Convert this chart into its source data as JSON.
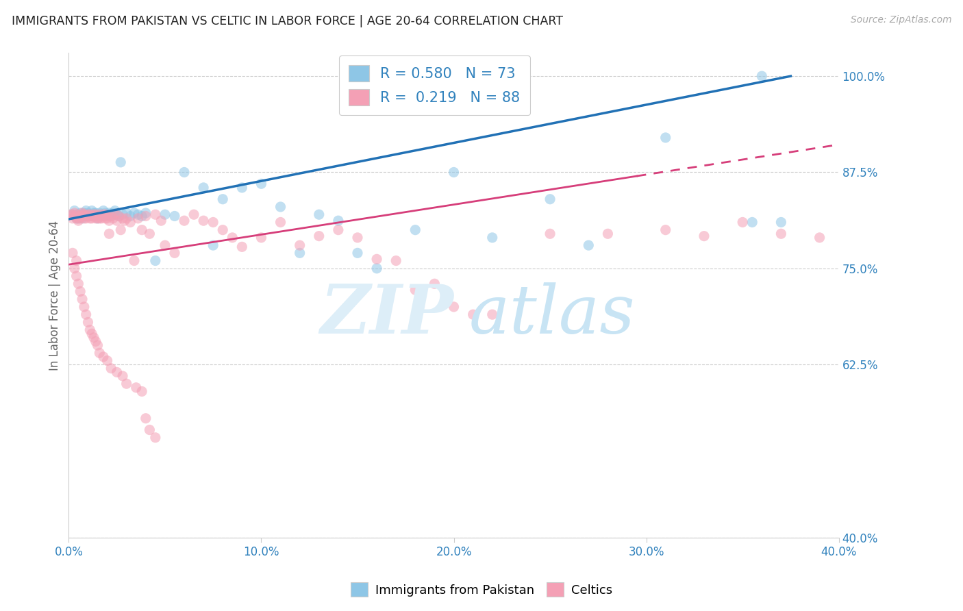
{
  "title": "IMMIGRANTS FROM PAKISTAN VS CELTIC IN LABOR FORCE | AGE 20-64 CORRELATION CHART",
  "source": "Source: ZipAtlas.com",
  "ylabel": "In Labor Force | Age 20-64",
  "xlim": [
    0.0,
    0.4
  ],
  "ylim": [
    0.4,
    1.03
  ],
  "xtick_labels": [
    "0.0%",
    "10.0%",
    "20.0%",
    "30.0%",
    "40.0%"
  ],
  "xtick_vals": [
    0.0,
    0.1,
    0.2,
    0.3,
    0.4
  ],
  "ytick_labels": [
    "100.0%",
    "87.5%",
    "75.0%",
    "62.5%",
    "40.0%"
  ],
  "ytick_vals": [
    1.0,
    0.875,
    0.75,
    0.625,
    0.4
  ],
  "color_blue": "#8ec6e6",
  "color_pink": "#f4a0b5",
  "color_blue_line": "#2171b5",
  "color_pink_line": "#d63e7a",
  "color_blue_text": "#3182bd",
  "blue_scatter_x": [
    0.002,
    0.003,
    0.004,
    0.005,
    0.005,
    0.006,
    0.006,
    0.007,
    0.007,
    0.008,
    0.008,
    0.009,
    0.009,
    0.01,
    0.01,
    0.011,
    0.011,
    0.012,
    0.012,
    0.013,
    0.013,
    0.014,
    0.014,
    0.015,
    0.015,
    0.016,
    0.016,
    0.017,
    0.017,
    0.018,
    0.018,
    0.019,
    0.02,
    0.02,
    0.021,
    0.022,
    0.022,
    0.023,
    0.024,
    0.025,
    0.026,
    0.027,
    0.028,
    0.03,
    0.032,
    0.034,
    0.036,
    0.038,
    0.04,
    0.045,
    0.05,
    0.055,
    0.06,
    0.07,
    0.075,
    0.08,
    0.09,
    0.1,
    0.11,
    0.12,
    0.13,
    0.14,
    0.15,
    0.16,
    0.18,
    0.2,
    0.22,
    0.25,
    0.27,
    0.31,
    0.355,
    0.36,
    0.37
  ],
  "blue_scatter_y": [
    0.82,
    0.825,
    0.815,
    0.82,
    0.815,
    0.818,
    0.822,
    0.82,
    0.815,
    0.822,
    0.818,
    0.825,
    0.82,
    0.822,
    0.818,
    0.82,
    0.818,
    0.825,
    0.818,
    0.822,
    0.82,
    0.818,
    0.822,
    0.82,
    0.815,
    0.822,
    0.818,
    0.82,
    0.818,
    0.825,
    0.818,
    0.822,
    0.82,
    0.818,
    0.822,
    0.82,
    0.818,
    0.822,
    0.825,
    0.82,
    0.818,
    0.888,
    0.82,
    0.822,
    0.818,
    0.822,
    0.82,
    0.818,
    0.822,
    0.76,
    0.82,
    0.818,
    0.875,
    0.855,
    0.78,
    0.84,
    0.855,
    0.86,
    0.83,
    0.77,
    0.82,
    0.812,
    0.77,
    0.75,
    0.8,
    0.875,
    0.79,
    0.84,
    0.78,
    0.92,
    0.81,
    1.0,
    0.81
  ],
  "pink_scatter_x": [
    0.001,
    0.002,
    0.002,
    0.003,
    0.003,
    0.004,
    0.004,
    0.005,
    0.005,
    0.006,
    0.006,
    0.007,
    0.007,
    0.007,
    0.008,
    0.008,
    0.009,
    0.009,
    0.01,
    0.01,
    0.011,
    0.011,
    0.012,
    0.012,
    0.013,
    0.013,
    0.014,
    0.014,
    0.015,
    0.015,
    0.016,
    0.016,
    0.017,
    0.017,
    0.018,
    0.018,
    0.019,
    0.019,
    0.02,
    0.02,
    0.021,
    0.021,
    0.022,
    0.023,
    0.024,
    0.025,
    0.026,
    0.027,
    0.028,
    0.029,
    0.03,
    0.032,
    0.034,
    0.036,
    0.038,
    0.04,
    0.042,
    0.045,
    0.048,
    0.05,
    0.055,
    0.06,
    0.065,
    0.07,
    0.075,
    0.08,
    0.085,
    0.09,
    0.1,
    0.11,
    0.12,
    0.13,
    0.14,
    0.15,
    0.16,
    0.17,
    0.18,
    0.19,
    0.2,
    0.21,
    0.22,
    0.25,
    0.28,
    0.31,
    0.33,
    0.35,
    0.37,
    0.39
  ],
  "pink_scatter_y": [
    0.82,
    0.815,
    0.82,
    0.822,
    0.818,
    0.815,
    0.82,
    0.815,
    0.812,
    0.818,
    0.815,
    0.82,
    0.818,
    0.822,
    0.815,
    0.82,
    0.818,
    0.815,
    0.82,
    0.818,
    0.815,
    0.82,
    0.818,
    0.815,
    0.82,
    0.818,
    0.815,
    0.82,
    0.818,
    0.815,
    0.82,
    0.815,
    0.818,
    0.815,
    0.82,
    0.818,
    0.815,
    0.82,
    0.818,
    0.815,
    0.795,
    0.812,
    0.818,
    0.815,
    0.82,
    0.812,
    0.818,
    0.8,
    0.815,
    0.812,
    0.815,
    0.81,
    0.76,
    0.815,
    0.8,
    0.818,
    0.795,
    0.82,
    0.812,
    0.78,
    0.77,
    0.812,
    0.82,
    0.812,
    0.81,
    0.8,
    0.79,
    0.778,
    0.79,
    0.81,
    0.78,
    0.792,
    0.8,
    0.79,
    0.762,
    0.76,
    0.722,
    0.73,
    0.7,
    0.69,
    0.69,
    0.795,
    0.795,
    0.8,
    0.792,
    0.81,
    0.795,
    0.79
  ],
  "pink_scatter_low_x": [
    0.002,
    0.003,
    0.004,
    0.004,
    0.005,
    0.006,
    0.007,
    0.008,
    0.009,
    0.01,
    0.011,
    0.012,
    0.013,
    0.014,
    0.015,
    0.016,
    0.018,
    0.02,
    0.022,
    0.025,
    0.028,
    0.03,
    0.035,
    0.038,
    0.04,
    0.042,
    0.045
  ],
  "pink_scatter_low_y": [
    0.77,
    0.75,
    0.76,
    0.74,
    0.73,
    0.72,
    0.71,
    0.7,
    0.69,
    0.68,
    0.67,
    0.665,
    0.66,
    0.655,
    0.65,
    0.64,
    0.635,
    0.63,
    0.62,
    0.615,
    0.61,
    0.6,
    0.595,
    0.59,
    0.555,
    0.54,
    0.53
  ],
  "blue_line_x0": 0.0,
  "blue_line_y0": 0.814,
  "blue_line_x1": 0.375,
  "blue_line_y1": 1.0,
  "pink_line_solid_x0": 0.0,
  "pink_line_solid_y0": 0.755,
  "pink_line_solid_x1": 0.295,
  "pink_line_solid_y1": 0.87,
  "pink_line_dash_x0": 0.295,
  "pink_line_dash_y0": 0.87,
  "pink_line_dash_x1": 0.4,
  "pink_line_dash_y1": 0.911
}
